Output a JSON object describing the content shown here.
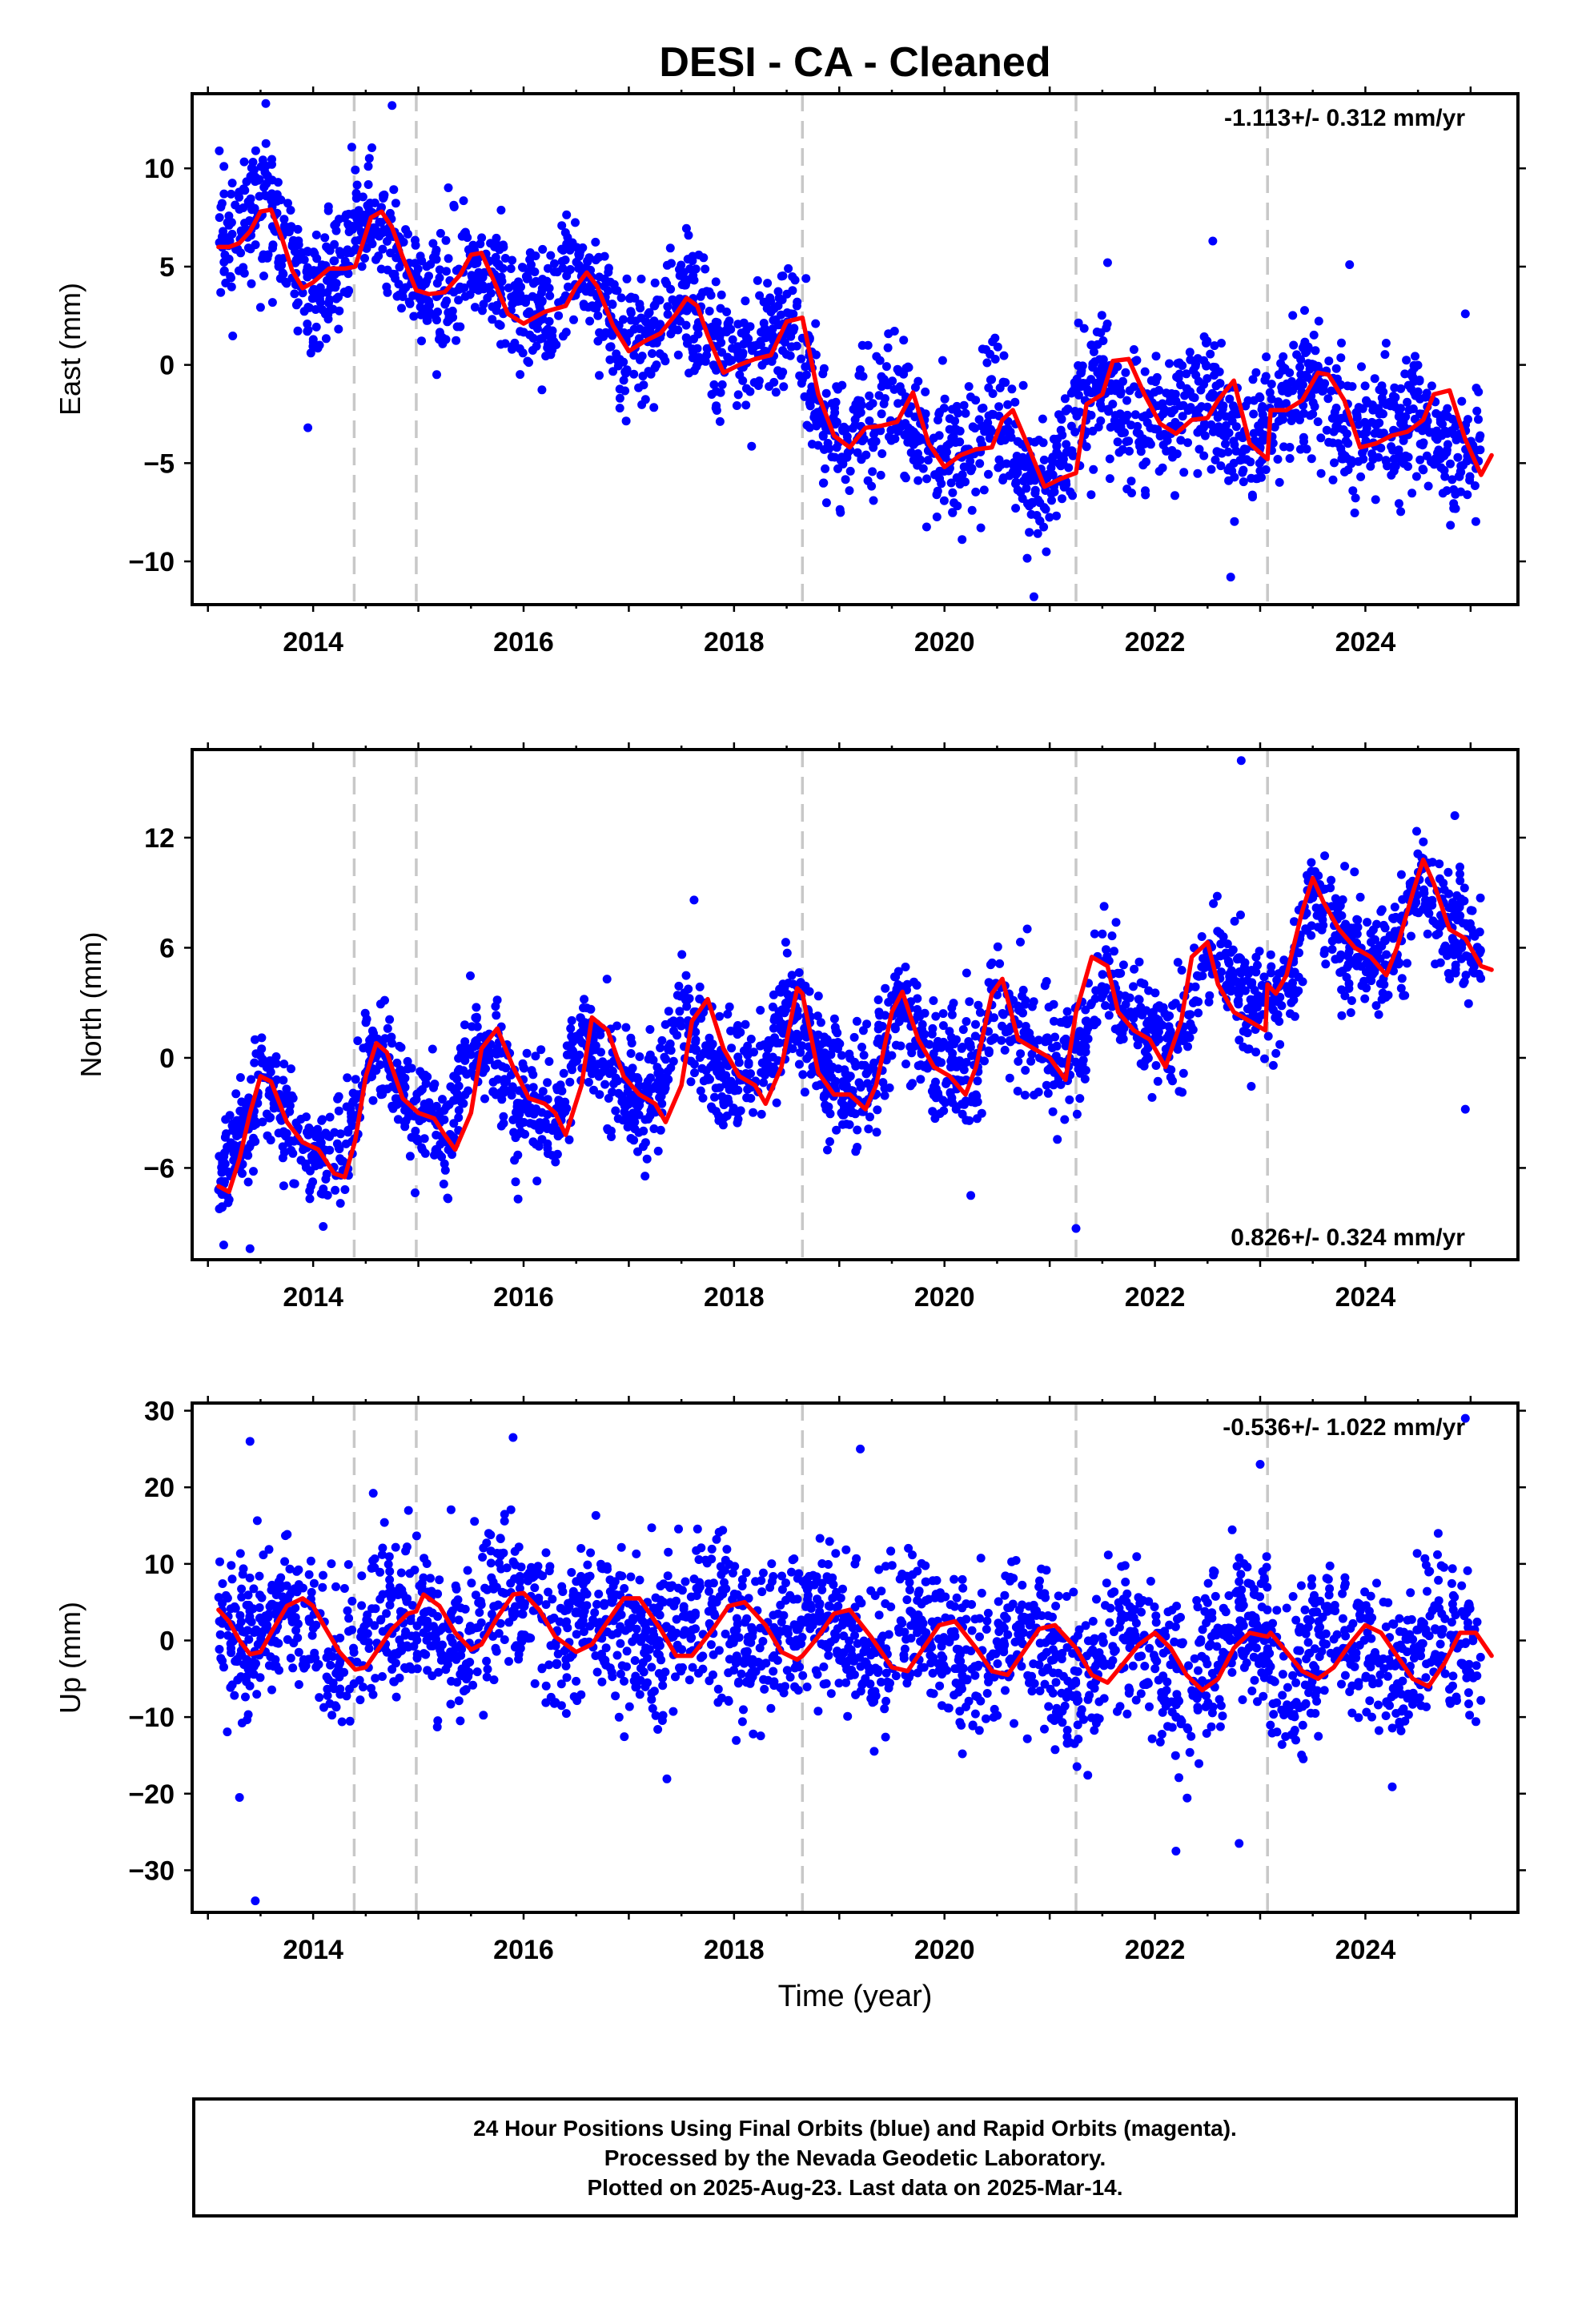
{
  "title": "DESI  - CA - Cleaned",
  "xlabel": "Time (year)",
  "x_ticks": [
    2014,
    2016,
    2018,
    2020,
    2022,
    2024
  ],
  "caption": {
    "line1": "24 Hour Positions Using Final Orbits (blue) and Rapid Orbits (magenta).",
    "line2": "Processed by the Nevada Geodetic Laboratory.",
    "line3": "Plotted on 2025-Aug-23. Last data on 2025-Mar-14."
  },
  "colors": {
    "points": "#0000ff",
    "model": "#ff0000",
    "event_lines": "#c8c8c8",
    "frame": "#000000"
  },
  "chart_data": [
    {
      "type": "scatter",
      "component": "east",
      "ylabel": "East (mm)",
      "xlim": [
        2012.85,
        2025.45
      ],
      "ylim": [
        -12.2,
        13.8
      ],
      "yticks": [
        10,
        5,
        0,
        -5,
        -10
      ],
      "rate_text": "-1.113+/- 0.312 mm/yr",
      "rate_position": "top-right",
      "event_lines_x": [
        2014.39,
        2014.98,
        2018.65,
        2021.25,
        2023.07
      ],
      "scatter_center_x": [
        2013.1,
        2013.35,
        2013.55,
        2013.75,
        2013.92,
        2014.1,
        2014.3,
        2014.5,
        2014.7,
        2014.9,
        2015.1,
        2015.3,
        2015.5,
        2015.7,
        2015.9,
        2016.1,
        2016.3,
        2016.5,
        2016.7,
        2016.9,
        2017.1,
        2017.3,
        2017.5,
        2017.7,
        2017.9,
        2018.1,
        2018.3,
        2018.5,
        2018.7,
        2018.9,
        2019.1,
        2019.3,
        2019.5,
        2019.7,
        2019.9,
        2020.1,
        2020.3,
        2020.5,
        2020.7,
        2020.9,
        2021.1,
        2021.3,
        2021.5,
        2021.7,
        2021.9,
        2022.1,
        2022.3,
        2022.5,
        2022.7,
        2022.9,
        2023.1,
        2023.3,
        2023.5,
        2023.7,
        2023.9,
        2024.1,
        2024.3,
        2024.5,
        2024.7,
        2024.9,
        2025.1
      ],
      "scatter_center_y": [
        6.5,
        7.5,
        8.5,
        6.0,
        3.5,
        4.0,
        5.5,
        7.5,
        7.0,
        4.0,
        3.5,
        4.0,
        5.5,
        4.5,
        2.5,
        2.5,
        3.0,
        4.5,
        3.5,
        1.0,
        1.0,
        2.0,
        3.5,
        2.0,
        0.0,
        0.5,
        1.0,
        2.5,
        0.0,
        -4.0,
        -3.0,
        -3.0,
        -1.5,
        -3.5,
        -5.0,
        -4.5,
        -4.0,
        -2.5,
        -4.5,
        -6.0,
        -5.0,
        -2.0,
        -0.5,
        -2.5,
        -3.0,
        -3.0,
        -2.5,
        -1.0,
        -3.5,
        -4.5,
        -2.5,
        -2.0,
        -0.5,
        -2.5,
        -4.0,
        -3.5,
        -3.5,
        -2.0,
        -4.0,
        -5.0,
        -4.5
      ],
      "scatter_spread_mm": 1.6,
      "outliers": [
        {
          "x": 2013.95,
          "y": -3.2
        },
        {
          "x": 2020.85,
          "y": -11.8
        },
        {
          "x": 2022.72,
          "y": -10.8
        },
        {
          "x": 2021.55,
          "y": 5.2
        },
        {
          "x": 2022.55,
          "y": 6.3
        },
        {
          "x": 2023.85,
          "y": 5.1
        },
        {
          "x": 2013.55,
          "y": 13.3
        },
        {
          "x": 2014.75,
          "y": 13.2
        },
        {
          "x": 2024.95,
          "y": 2.6
        }
      ],
      "model_x": [
        2013.1,
        2013.2,
        2013.3,
        2013.4,
        2013.5,
        2013.6,
        2013.7,
        2013.8,
        2013.9,
        2014.0,
        2014.15,
        2014.3,
        2014.4,
        2014.55,
        2014.65,
        2014.75,
        2014.85,
        2014.98,
        2015.1,
        2015.25,
        2015.4,
        2015.5,
        2015.6,
        2015.7,
        2015.85,
        2016.0,
        2016.2,
        2016.4,
        2016.5,
        2016.6,
        2016.7,
        2016.85,
        2017.0,
        2017.15,
        2017.3,
        2017.45,
        2017.55,
        2017.65,
        2017.75,
        2017.9,
        2018.05,
        2018.2,
        2018.35,
        2018.5,
        2018.65,
        2018.8,
        2018.95,
        2019.1,
        2019.25,
        2019.4,
        2019.55,
        2019.7,
        2019.85,
        2020.0,
        2020.15,
        2020.3,
        2020.45,
        2020.55,
        2020.65,
        2020.8,
        2020.95,
        2021.1,
        2021.25,
        2021.35,
        2021.5,
        2021.6,
        2021.75,
        2021.9,
        2022.05,
        2022.2,
        2022.35,
        2022.5,
        2022.6,
        2022.75,
        2022.9,
        2023.07,
        2023.1,
        2023.25,
        2023.4,
        2023.55,
        2023.65,
        2023.8,
        2023.95,
        2024.1,
        2024.25,
        2024.4,
        2024.55,
        2024.65,
        2024.8,
        2024.95,
        2025.1,
        2025.2
      ],
      "model_y": [
        6.0,
        6.0,
        6.2,
        6.8,
        7.8,
        7.9,
        6.5,
        4.8,
        3.9,
        4.2,
        4.9,
        4.9,
        5.0,
        7.5,
        7.8,
        7.0,
        5.5,
        3.8,
        3.6,
        3.7,
        4.6,
        5.6,
        5.7,
        4.5,
        2.6,
        2.1,
        2.7,
        3.0,
        4.0,
        4.7,
        4.0,
        2.0,
        0.7,
        1.2,
        1.6,
        2.6,
        3.4,
        3.0,
        1.5,
        -0.4,
        0.0,
        0.3,
        0.5,
        2.2,
        2.4,
        -1.5,
        -3.6,
        -4.2,
        -3.2,
        -3.1,
        -2.9,
        -1.4,
        -4.0,
        -5.2,
        -4.6,
        -4.3,
        -4.2,
        -2.8,
        -2.3,
        -4.2,
        -6.2,
        -5.8,
        -5.5,
        -2.0,
        -1.5,
        0.2,
        0.3,
        -1.5,
        -3.0,
        -3.5,
        -2.8,
        -2.7,
        -1.8,
        -0.8,
        -4.0,
        -4.8,
        -2.3,
        -2.3,
        -1.8,
        -0.4,
        -0.5,
        -1.8,
        -4.2,
        -4.0,
        -3.6,
        -3.4,
        -2.8,
        -1.5,
        -1.3,
        -3.8,
        -5.6,
        -4.6
      ]
    },
    {
      "type": "scatter",
      "component": "north",
      "ylabel": "North (mm)",
      "xlim": [
        2012.85,
        2025.45
      ],
      "ylim": [
        -11.0,
        16.8
      ],
      "yticks": [
        12,
        6,
        0,
        -6
      ],
      "rate_text": "0.826+/- 0.324 mm/yr",
      "rate_position": "bottom-right",
      "event_lines_x": [
        2014.39,
        2014.98,
        2018.65,
        2021.25,
        2023.07
      ],
      "scatter_center_x": [
        2013.1,
        2013.35,
        2013.55,
        2013.75,
        2013.92,
        2014.1,
        2014.3,
        2014.5,
        2014.7,
        2014.9,
        2015.1,
        2015.3,
        2015.5,
        2015.7,
        2015.9,
        2016.1,
        2016.3,
        2016.5,
        2016.7,
        2016.9,
        2017.1,
        2017.3,
        2017.5,
        2017.7,
        2017.9,
        2018.1,
        2018.3,
        2018.5,
        2018.7,
        2018.9,
        2019.1,
        2019.3,
        2019.5,
        2019.7,
        2019.9,
        2020.1,
        2020.3,
        2020.5,
        2020.7,
        2020.9,
        2021.1,
        2021.3,
        2021.5,
        2021.7,
        2021.9,
        2022.1,
        2022.3,
        2022.5,
        2022.7,
        2022.9,
        2023.1,
        2023.3,
        2023.5,
        2023.7,
        2023.9,
        2024.1,
        2024.3,
        2024.5,
        2024.7,
        2024.9,
        2025.1
      ],
      "scatter_center_y": [
        -6.5,
        -4.0,
        -1.0,
        -3.5,
        -5.5,
        -5.5,
        -5.0,
        0.0,
        0.0,
        -2.5,
        -3.0,
        -4.0,
        0.5,
        0.5,
        -2.5,
        -3.0,
        -3.5,
        1.0,
        0.5,
        -2.0,
        -2.5,
        -2.0,
        2.5,
        0.5,
        -1.0,
        -1.5,
        -1.0,
        3.0,
        1.5,
        -1.0,
        -2.0,
        -1.5,
        3.0,
        1.5,
        -0.5,
        -1.0,
        -0.5,
        3.5,
        2.0,
        0.5,
        0.0,
        0.5,
        4.5,
        3.0,
        1.5,
        1.0,
        1.5,
        6.0,
        4.5,
        3.0,
        3.0,
        4.0,
        9.5,
        7.5,
        6.0,
        5.5,
        5.0,
        10.0,
        8.0,
        7.0,
        5.5
      ],
      "scatter_spread_mm": 1.5,
      "outliers": [
        {
          "x": 2022.82,
          "y": 16.2
        },
        {
          "x": 2021.25,
          "y": -9.3
        },
        {
          "x": 2024.95,
          "y": -2.8
        },
        {
          "x": 2013.15,
          "y": -10.2
        },
        {
          "x": 2013.4,
          "y": -10.4
        },
        {
          "x": 2017.62,
          "y": 8.6
        },
        {
          "x": 2020.25,
          "y": -7.5
        },
        {
          "x": 2024.85,
          "y": 13.2
        }
      ],
      "model_x": [
        2013.1,
        2013.2,
        2013.3,
        2013.4,
        2013.5,
        2013.6,
        2013.75,
        2013.9,
        2014.05,
        2014.2,
        2014.3,
        2014.4,
        2014.5,
        2014.6,
        2014.7,
        2014.85,
        2015.0,
        2015.15,
        2015.25,
        2015.35,
        2015.5,
        2015.6,
        2015.75,
        2015.9,
        2016.05,
        2016.2,
        2016.3,
        2016.4,
        2016.55,
        2016.65,
        2016.8,
        2016.95,
        2017.1,
        2017.25,
        2017.35,
        2017.5,
        2017.6,
        2017.75,
        2017.9,
        2018.05,
        2018.2,
        2018.3,
        2018.45,
        2018.6,
        2018.65,
        2018.8,
        2018.95,
        2019.1,
        2019.25,
        2019.35,
        2019.5,
        2019.6,
        2019.75,
        2019.9,
        2020.05,
        2020.2,
        2020.3,
        2020.45,
        2020.55,
        2020.7,
        2020.85,
        2021.0,
        2021.15,
        2021.25,
        2021.4,
        2021.55,
        2021.65,
        2021.8,
        2021.95,
        2022.1,
        2022.25,
        2022.35,
        2022.5,
        2022.6,
        2022.75,
        2022.9,
        2023.05,
        2023.07,
        2023.15,
        2023.25,
        2023.4,
        2023.5,
        2023.6,
        2023.75,
        2023.9,
        2024.05,
        2024.2,
        2024.3,
        2024.45,
        2024.55,
        2024.65,
        2024.8,
        2024.95,
        2025.1,
        2025.2
      ],
      "model_y": [
        -7.0,
        -7.3,
        -5.5,
        -3.0,
        -1.0,
        -1.3,
        -3.5,
        -4.6,
        -5.0,
        -6.3,
        -6.5,
        -4.5,
        -1.0,
        0.8,
        0.3,
        -2.2,
        -3.0,
        -3.3,
        -4.2,
        -5.0,
        -3.0,
        0.5,
        1.6,
        -0.5,
        -2.2,
        -2.5,
        -3.0,
        -4.2,
        -1.5,
        2.2,
        1.5,
        -1.0,
        -2.0,
        -2.5,
        -3.5,
        -1.5,
        2.0,
        3.2,
        0.5,
        -1.0,
        -1.5,
        -2.5,
        -0.5,
        3.8,
        3.5,
        -0.8,
        -2.0,
        -2.0,
        -2.8,
        -1.5,
        2.5,
        3.6,
        1.0,
        -0.5,
        -1.0,
        -2.0,
        -0.5,
        3.5,
        4.3,
        1.0,
        0.5,
        0.0,
        -1.2,
        2.5,
        5.5,
        5.0,
        2.5,
        1.5,
        1.0,
        -0.5,
        2.0,
        5.5,
        6.3,
        4.0,
        2.5,
        2.0,
        1.5,
        4.0,
        3.5,
        4.5,
        8.0,
        9.8,
        8.5,
        7.0,
        6.0,
        5.5,
        4.5,
        6.0,
        9.0,
        10.8,
        9.5,
        7.0,
        6.5,
        5.0,
        4.8
      ]
    },
    {
      "type": "scatter",
      "component": "up",
      "ylabel": "Up (mm)",
      "xlim": [
        2012.85,
        2025.45
      ],
      "ylim": [
        -35.5,
        31.0
      ],
      "yticks": [
        30,
        20,
        10,
        0,
        -10,
        -20,
        -30
      ],
      "rate_text": "-0.536+/- 1.022 mm/yr",
      "rate_position": "top-right",
      "event_lines_x": [
        2014.39,
        2014.98,
        2018.65,
        2021.25,
        2023.07
      ],
      "scatter_center_x": [
        2013.1,
        2013.35,
        2013.55,
        2013.75,
        2013.92,
        2014.1,
        2014.3,
        2014.5,
        2014.7,
        2014.9,
        2015.1,
        2015.3,
        2015.5,
        2015.7,
        2015.9,
        2016.1,
        2016.3,
        2016.5,
        2016.7,
        2016.9,
        2017.1,
        2017.3,
        2017.5,
        2017.7,
        2017.9,
        2018.1,
        2018.3,
        2018.5,
        2018.7,
        2018.9,
        2019.1,
        2019.3,
        2019.5,
        2019.7,
        2019.9,
        2020.1,
        2020.3,
        2020.5,
        2020.7,
        2020.9,
        2021.1,
        2021.3,
        2021.5,
        2021.7,
        2021.9,
        2022.1,
        2022.3,
        2022.5,
        2022.7,
        2022.9,
        2023.1,
        2023.3,
        2023.5,
        2023.7,
        2023.9,
        2024.1,
        2024.3,
        2024.5,
        2024.7,
        2024.9,
        2025.1
      ],
      "scatter_center_y": [
        2.0,
        -1.0,
        2.0,
        5.0,
        3.0,
        -2.0,
        -3.0,
        2.0,
        4.0,
        3.0,
        1.0,
        -1.0,
        2.0,
        6.0,
        7.0,
        4.0,
        0.0,
        1.0,
        4.0,
        3.0,
        0.0,
        -2.0,
        1.0,
        4.0,
        2.0,
        -1.0,
        -2.0,
        1.0,
        3.0,
        2.0,
        -1.0,
        -3.0,
        0.0,
        3.0,
        1.0,
        -2.0,
        -4.0,
        -1.0,
        2.0,
        0.0,
        -3.0,
        -5.0,
        -2.0,
        1.0,
        -1.0,
        -4.0,
        -6.0,
        -2.0,
        2.0,
        3.0,
        -2.0,
        -5.0,
        -2.0,
        1.0,
        1.0,
        -3.0,
        -5.0,
        -1.0,
        1.0,
        0.0,
        -2.0
      ],
      "scatter_spread_mm": 5.0,
      "outliers": [
        {
          "x": 2013.45,
          "y": -34.0
        },
        {
          "x": 2013.4,
          "y": 26.0
        },
        {
          "x": 2015.9,
          "y": 26.5
        },
        {
          "x": 2022.2,
          "y": -27.5
        },
        {
          "x": 2022.8,
          "y": -26.5
        },
        {
          "x": 2023.0,
          "y": 23.0
        },
        {
          "x": 2024.95,
          "y": 29.0
        },
        {
          "x": 2019.2,
          "y": 25.0
        },
        {
          "x": 2013.3,
          "y": -20.5
        }
      ],
      "model_x": [
        2013.1,
        2013.2,
        2013.3,
        2013.4,
        2013.5,
        2013.6,
        2013.75,
        2013.9,
        2014.0,
        2014.1,
        2014.25,
        2014.4,
        2014.5,
        2014.6,
        2014.75,
        2014.9,
        2014.98,
        2015.05,
        2015.2,
        2015.35,
        2015.5,
        2015.6,
        2015.75,
        2015.9,
        2016.0,
        2016.15,
        2016.3,
        2016.5,
        2016.65,
        2016.8,
        2016.95,
        2017.1,
        2017.3,
        2017.45,
        2017.6,
        2017.8,
        2017.95,
        2018.1,
        2018.3,
        2018.45,
        2018.6,
        2018.65,
        2018.8,
        2018.95,
        2019.1,
        2019.3,
        2019.5,
        2019.65,
        2019.8,
        2019.95,
        2020.1,
        2020.3,
        2020.45,
        2020.6,
        2020.75,
        2020.9,
        2021.05,
        2021.25,
        2021.4,
        2021.55,
        2021.7,
        2021.85,
        2022.0,
        2022.15,
        2022.3,
        2022.45,
        2022.6,
        2022.75,
        2022.9,
        2023.07,
        2023.1,
        2023.25,
        2023.4,
        2023.55,
        2023.7,
        2023.85,
        2024.0,
        2024.15,
        2024.3,
        2024.45,
        2024.6,
        2024.75,
        2024.9,
        2025.05,
        2025.2
      ],
      "model_y": [
        4.0,
        2.5,
        0.0,
        -1.8,
        -1.5,
        1.0,
        4.5,
        5.5,
        4.5,
        2.0,
        -1.5,
        -3.8,
        -3.5,
        -1.5,
        1.5,
        3.5,
        3.8,
        6.0,
        4.5,
        1.0,
        -1.2,
        -0.5,
        3.0,
        6.0,
        6.2,
        4.0,
        0.5,
        -1.5,
        -0.5,
        2.5,
        5.5,
        5.5,
        1.5,
        -2.0,
        -2.0,
        1.5,
        4.5,
        5.0,
        2.0,
        -1.5,
        -2.5,
        -2.0,
        0.5,
        3.5,
        4.0,
        0.5,
        -3.5,
        -4.0,
        -1.0,
        2.0,
        2.5,
        -1.0,
        -4.0,
        -4.5,
        -1.5,
        1.5,
        2.0,
        -1.0,
        -4.5,
        -5.5,
        -3.0,
        -0.5,
        1.0,
        -1.0,
        -4.5,
        -6.5,
        -5.0,
        -1.0,
        1.0,
        0.5,
        1.0,
        -1.5,
        -4.0,
        -5.0,
        -3.5,
        -0.5,
        2.0,
        1.0,
        -2.0,
        -5.0,
        -6.0,
        -3.0,
        1.0,
        1.0,
        -2.0
      ]
    }
  ]
}
